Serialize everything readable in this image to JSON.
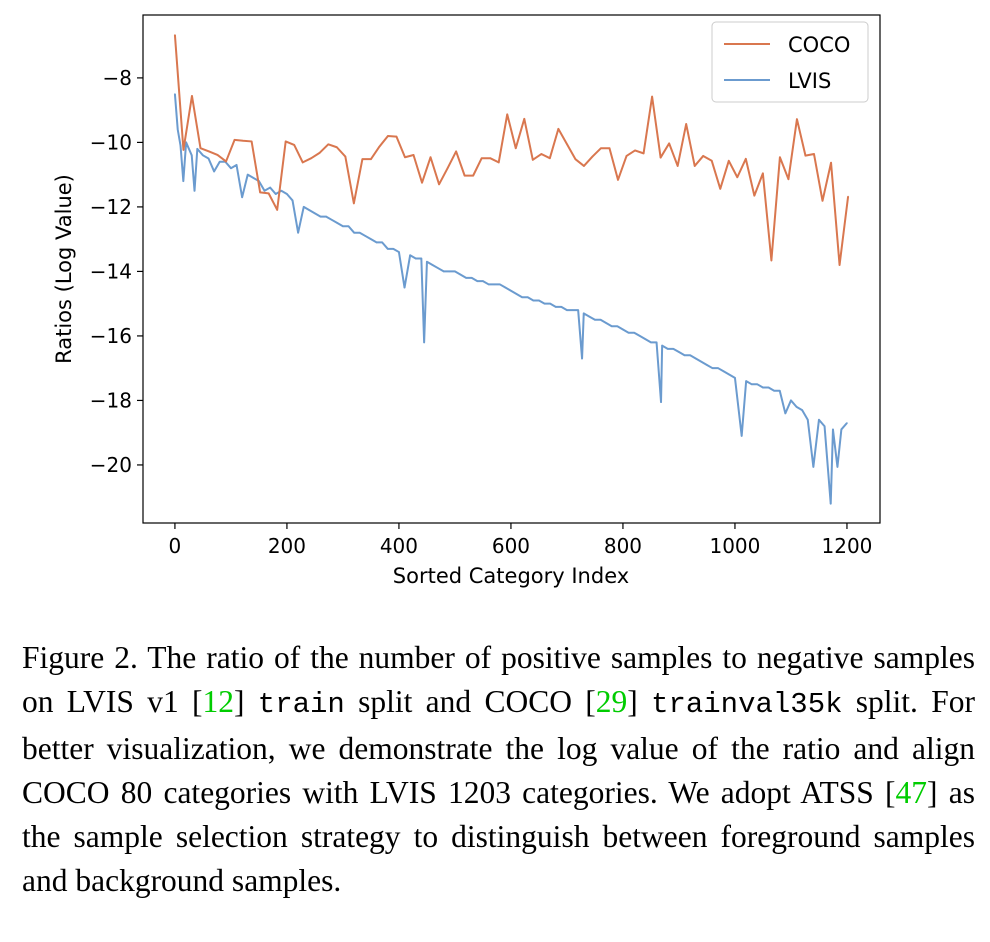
{
  "chart_data": {
    "type": "line",
    "xlabel": "Sorted Category Index",
    "ylabel": "Ratios (Log Value)",
    "xlim": [
      -57,
      1259
    ],
    "ylim": [
      -21.8,
      -6.05
    ],
    "xticks": [
      0,
      200,
      400,
      600,
      800,
      1000,
      1200
    ],
    "yticks": [
      -8,
      -10,
      -12,
      -14,
      -16,
      -18,
      -20
    ],
    "xtick_labels": [
      "0",
      "200",
      "400",
      "600",
      "800",
      "1000",
      "1200"
    ],
    "ytick_labels": [
      "−8",
      "−10",
      "−12",
      "−14",
      "−16",
      "−18",
      "−20"
    ],
    "grid": false,
    "legend_position": "top-right",
    "series": [
      {
        "name": "COCO",
        "color": "#d9774f",
        "x_start": 0,
        "x_end": 1202,
        "values": [
          -6.67,
          -10.23,
          -8.56,
          -10.18,
          -10.28,
          -10.39,
          -10.59,
          -9.92,
          -9.95,
          -9.97,
          -11.55,
          -11.58,
          -12.09,
          -9.97,
          -10.08,
          -10.62,
          -10.49,
          -10.32,
          -10.06,
          -10.15,
          -10.44,
          -11.89,
          -10.52,
          -10.52,
          -10.13,
          -9.8,
          -9.82,
          -10.46,
          -10.39,
          -11.25,
          -10.46,
          -11.3,
          -10.8,
          -10.28,
          -11.03,
          -11.03,
          -10.49,
          -10.49,
          -10.62,
          -9.13,
          -10.18,
          -9.27,
          -10.54,
          -10.36,
          -10.49,
          -9.58,
          -10.05,
          -10.52,
          -10.73,
          -10.44,
          -10.18,
          -10.18,
          -11.16,
          -10.42,
          -10.25,
          -10.34,
          -8.58,
          -10.47,
          -10.03,
          -10.73,
          -9.43,
          -10.73,
          -10.42,
          -10.57,
          -11.44,
          -10.57,
          -11.08,
          -10.51,
          -11.65,
          -10.96,
          -13.66,
          -10.46,
          -11.14,
          -9.28,
          -10.41,
          -10.36,
          -11.81,
          -10.63,
          -13.8,
          -11.68
        ]
      },
      {
        "name": "LVIS",
        "color": "#6b9bcf",
        "points": [
          [
            0,
            -8.5
          ],
          [
            5,
            -9.6
          ],
          [
            10,
            -10.1
          ],
          [
            15,
            -11.2
          ],
          [
            20,
            -10.0
          ],
          [
            30,
            -10.4
          ],
          [
            35,
            -11.5
          ],
          [
            40,
            -10.2
          ],
          [
            50,
            -10.4
          ],
          [
            60,
            -10.5
          ],
          [
            70,
            -10.9
          ],
          [
            80,
            -10.6
          ],
          [
            90,
            -10.6
          ],
          [
            100,
            -10.8
          ],
          [
            110,
            -10.7
          ],
          [
            120,
            -11.7
          ],
          [
            130,
            -11.0
          ],
          [
            140,
            -11.1
          ],
          [
            150,
            -11.2
          ],
          [
            160,
            -11.5
          ],
          [
            170,
            -11.4
          ],
          [
            180,
            -11.6
          ],
          [
            190,
            -11.5
          ],
          [
            200,
            -11.6
          ],
          [
            210,
            -11.8
          ],
          [
            220,
            -12.8
          ],
          [
            230,
            -12.0
          ],
          [
            240,
            -12.1
          ],
          [
            250,
            -12.2
          ],
          [
            260,
            -12.3
          ],
          [
            270,
            -12.3
          ],
          [
            280,
            -12.4
          ],
          [
            290,
            -12.5
          ],
          [
            300,
            -12.6
          ],
          [
            310,
            -12.6
          ],
          [
            320,
            -12.8
          ],
          [
            330,
            -12.8
          ],
          [
            340,
            -12.9
          ],
          [
            350,
            -13.0
          ],
          [
            360,
            -13.1
          ],
          [
            370,
            -13.1
          ],
          [
            380,
            -13.3
          ],
          [
            390,
            -13.3
          ],
          [
            400,
            -13.4
          ],
          [
            410,
            -14.5
          ],
          [
            420,
            -13.5
          ],
          [
            430,
            -13.6
          ],
          [
            440,
            -13.6
          ],
          [
            445,
            -16.2
          ],
          [
            450,
            -13.7
          ],
          [
            460,
            -13.8
          ],
          [
            470,
            -13.9
          ],
          [
            480,
            -14.0
          ],
          [
            490,
            -14.0
          ],
          [
            500,
            -14.0
          ],
          [
            510,
            -14.1
          ],
          [
            520,
            -14.2
          ],
          [
            530,
            -14.2
          ],
          [
            540,
            -14.3
          ],
          [
            550,
            -14.3
          ],
          [
            560,
            -14.4
          ],
          [
            570,
            -14.4
          ],
          [
            580,
            -14.4
          ],
          [
            590,
            -14.5
          ],
          [
            600,
            -14.6
          ],
          [
            610,
            -14.7
          ],
          [
            620,
            -14.8
          ],
          [
            630,
            -14.8
          ],
          [
            640,
            -14.9
          ],
          [
            650,
            -14.9
          ],
          [
            660,
            -15.0
          ],
          [
            670,
            -15.0
          ],
          [
            680,
            -15.1
          ],
          [
            690,
            -15.1
          ],
          [
            700,
            -15.2
          ],
          [
            710,
            -15.2
          ],
          [
            720,
            -15.2
          ],
          [
            727,
            -16.7
          ],
          [
            730,
            -15.3
          ],
          [
            740,
            -15.4
          ],
          [
            750,
            -15.5
          ],
          [
            760,
            -15.5
          ],
          [
            770,
            -15.6
          ],
          [
            780,
            -15.7
          ],
          [
            790,
            -15.7
          ],
          [
            800,
            -15.8
          ],
          [
            810,
            -15.9
          ],
          [
            820,
            -15.9
          ],
          [
            830,
            -16.0
          ],
          [
            840,
            -16.1
          ],
          [
            850,
            -16.2
          ],
          [
            860,
            -16.2
          ],
          [
            868,
            -18.05
          ],
          [
            870,
            -16.3
          ],
          [
            880,
            -16.4
          ],
          [
            890,
            -16.4
          ],
          [
            900,
            -16.5
          ],
          [
            910,
            -16.6
          ],
          [
            920,
            -16.6
          ],
          [
            930,
            -16.7
          ],
          [
            940,
            -16.8
          ],
          [
            950,
            -16.9
          ],
          [
            960,
            -17.0
          ],
          [
            970,
            -17.0
          ],
          [
            980,
            -17.1
          ],
          [
            990,
            -17.2
          ],
          [
            1000,
            -17.3
          ],
          [
            1012,
            -19.1
          ],
          [
            1020,
            -17.4
          ],
          [
            1030,
            -17.5
          ],
          [
            1040,
            -17.5
          ],
          [
            1050,
            -17.6
          ],
          [
            1060,
            -17.6
          ],
          [
            1070,
            -17.7
          ],
          [
            1080,
            -17.7
          ],
          [
            1090,
            -18.4
          ],
          [
            1100,
            -18.0
          ],
          [
            1110,
            -18.2
          ],
          [
            1120,
            -18.3
          ],
          [
            1130,
            -18.6
          ],
          [
            1140,
            -20.06
          ],
          [
            1150,
            -18.6
          ],
          [
            1160,
            -18.8
          ],
          [
            1171,
            -21.2
          ],
          [
            1175,
            -18.9
          ],
          [
            1183,
            -20.06
          ],
          [
            1190,
            -18.9
          ],
          [
            1200,
            -18.7
          ]
        ]
      }
    ]
  },
  "caption": [
    {
      "t": "text",
      "v": "Figure 2.  The ratio of the number of positive samples to negative samples on LVIS v1 ["
    },
    {
      "t": "ref",
      "v": "12"
    },
    {
      "t": "text",
      "v": "] "
    },
    {
      "t": "mono",
      "v": "train"
    },
    {
      "t": "text",
      "v": " split and COCO ["
    },
    {
      "t": "ref",
      "v": "29"
    },
    {
      "t": "text",
      "v": "] "
    },
    {
      "t": "mono",
      "v": "trainval35k"
    },
    {
      "t": "text",
      "v": " split.  For better visualization, we demonstrate the log value of the ratio and align COCO 80 categories with LVIS 1203 categories. We adopt ATSS ["
    },
    {
      "t": "ref",
      "v": "47"
    },
    {
      "t": "text",
      "v": "] as the sample selection strategy to distinguish between foreground samples and background samples."
    }
  ]
}
